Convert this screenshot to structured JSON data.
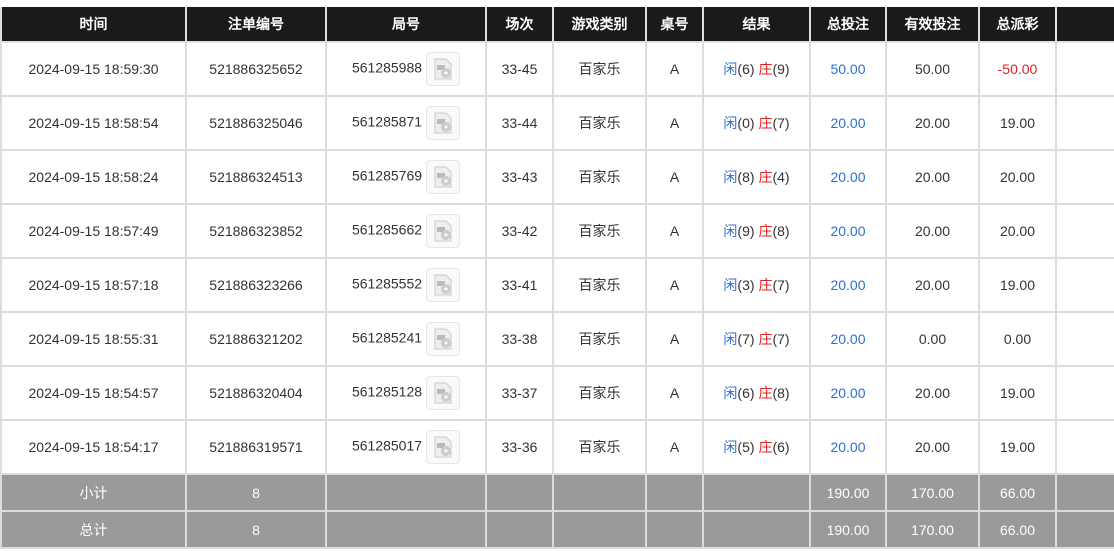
{
  "headers": [
    "时间",
    "注单编号",
    "局号",
    "场次",
    "游戏类别",
    "桌号",
    "结果",
    "总投注",
    "有效投注",
    "总派彩",
    ""
  ],
  "result_labels": {
    "player": "闲",
    "banker": "庄"
  },
  "colors": {
    "header_bg": "#1a1a1a",
    "summary_bg": "#9a9a9a",
    "blue": "#2d6ed8",
    "red": "#e02020"
  },
  "rows": [
    {
      "time": "2024-09-15 18:59:30",
      "bet_id": "521886325652",
      "round": "561285988",
      "shoe": "33-45",
      "game": "百家乐",
      "table": "A",
      "player": "(6)",
      "banker": "(9)",
      "total_bet": "50.00",
      "valid_bet": "50.00",
      "payout": "-50.00",
      "payout_negative": true
    },
    {
      "time": "2024-09-15 18:58:54",
      "bet_id": "521886325046",
      "round": "561285871",
      "shoe": "33-44",
      "game": "百家乐",
      "table": "A",
      "player": "(0)",
      "banker": "(7)",
      "total_bet": "20.00",
      "valid_bet": "20.00",
      "payout": "19.00"
    },
    {
      "time": "2024-09-15 18:58:24",
      "bet_id": "521886324513",
      "round": "561285769",
      "shoe": "33-43",
      "game": "百家乐",
      "table": "A",
      "player": "(8)",
      "banker": "(4)",
      "total_bet": "20.00",
      "valid_bet": "20.00",
      "payout": "20.00"
    },
    {
      "time": "2024-09-15 18:57:49",
      "bet_id": "521886323852",
      "round": "561285662",
      "shoe": "33-42",
      "game": "百家乐",
      "table": "A",
      "player": "(9)",
      "banker": "(8)",
      "total_bet": "20.00",
      "valid_bet": "20.00",
      "payout": "20.00"
    },
    {
      "time": "2024-09-15 18:57:18",
      "bet_id": "521886323266",
      "round": "561285552",
      "shoe": "33-41",
      "game": "百家乐",
      "table": "A",
      "player": "(3)",
      "banker": "(7)",
      "total_bet": "20.00",
      "valid_bet": "20.00",
      "payout": "19.00"
    },
    {
      "time": "2024-09-15 18:55:31",
      "bet_id": "521886321202",
      "round": "561285241",
      "shoe": "33-38",
      "game": "百家乐",
      "table": "A",
      "player": "(7)",
      "banker": "(7)",
      "total_bet": "20.00",
      "valid_bet": "0.00",
      "payout": "0.00"
    },
    {
      "time": "2024-09-15 18:54:57",
      "bet_id": "521886320404",
      "round": "561285128",
      "shoe": "33-37",
      "game": "百家乐",
      "table": "A",
      "player": "(6)",
      "banker": "(8)",
      "total_bet": "20.00",
      "valid_bet": "20.00",
      "payout": "19.00"
    },
    {
      "time": "2024-09-15 18:54:17",
      "bet_id": "521886319571",
      "round": "561285017",
      "shoe": "33-36",
      "game": "百家乐",
      "table": "A",
      "player": "(5)",
      "banker": "(6)",
      "total_bet": "20.00",
      "valid_bet": "20.00",
      "payout": "19.00"
    }
  ],
  "summary": [
    {
      "label": "小计",
      "count": "8",
      "total_bet": "190.00",
      "valid_bet": "170.00",
      "payout": "66.00"
    },
    {
      "label": "总计",
      "count": "8",
      "total_bet": "190.00",
      "valid_bet": "170.00",
      "payout": "66.00"
    }
  ]
}
